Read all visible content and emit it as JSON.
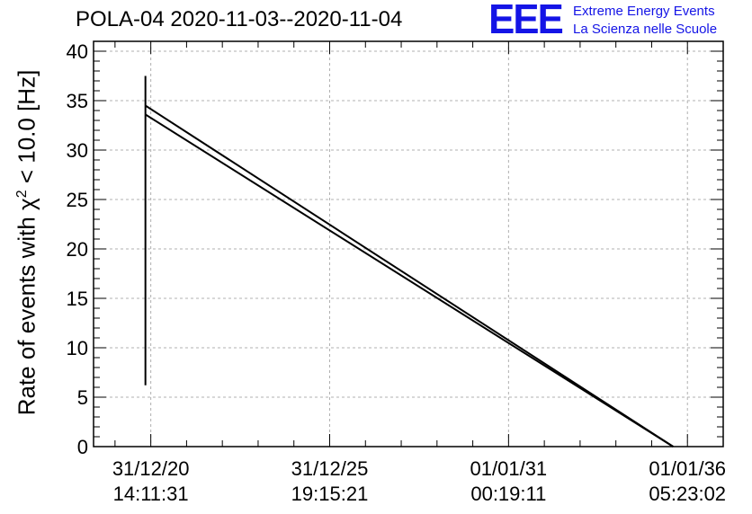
{
  "title": "POLA-04 2020-11-03--2020-11-04",
  "logo": {
    "mark": "EEE",
    "line1": "Extreme Energy Events",
    "line2": "La Scienza nelle Scuole"
  },
  "ylabel_prefix": "Rate of events with χ",
  "ylabel_sup": "2",
  "ylabel_suffix": " < 10.0 [Hz]",
  "chart_data": {
    "type": "line",
    "ylim": [
      0,
      41
    ],
    "yticks": [
      0,
      5,
      10,
      15,
      20,
      25,
      30,
      35,
      40
    ],
    "xlim": [
      -0.32,
      3.2
    ],
    "xticks": [
      {
        "x": 0,
        "line1": "31/12/20",
        "line2": "14:11:31"
      },
      {
        "x": 1,
        "line1": "31/12/25",
        "line2": "19:15:21"
      },
      {
        "x": 2,
        "line1": "01/01/31",
        "line2": "00:19:11"
      },
      {
        "x": 3,
        "line1": "01/01/36",
        "line2": "05:23:02"
      }
    ],
    "grid": true,
    "series": [
      {
        "values": [
          [
            -0.03,
            34.5
          ],
          [
            2.92,
            0
          ]
        ]
      },
      {
        "values": [
          [
            -0.03,
            33.6
          ],
          [
            2.92,
            0
          ]
        ]
      },
      {
        "values": [
          [
            -0.03,
            37.5
          ],
          [
            -0.03,
            6.2
          ]
        ]
      }
    ],
    "colors": {
      "line": "#000000",
      "grid": "#b0b0b0",
      "logo": "#1414e6"
    }
  }
}
